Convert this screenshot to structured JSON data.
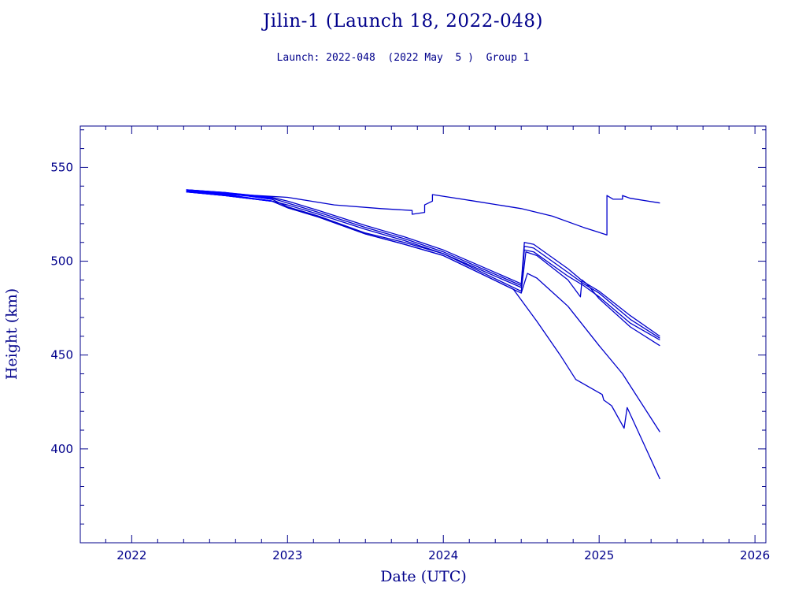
{
  "chart_data": {
    "type": "line",
    "title": "Jilin-1 (Launch 18, 2022-048)",
    "subtitle": "Launch: 2022-048  (2022 May  5 )  Group 1",
    "xlabel": "Date (UTC)",
    "ylabel": "Height (km)",
    "xlim": [
      2021.67,
      2026.07
    ],
    "ylim": [
      350,
      572
    ],
    "xticks": [
      2022,
      2023,
      2024,
      2025,
      2026
    ],
    "yticks": [
      400,
      450,
      500,
      550
    ],
    "grid": false,
    "colors": {
      "axis": "#00008b",
      "series": "#0000cc",
      "highlight": "#0000ff"
    },
    "series": [
      {
        "x": [
          2022.35,
          2022.5,
          2022.8,
          2023.0,
          2023.3,
          2023.6,
          2023.8,
          2023.8,
          2023.88,
          2023.88,
          2023.93,
          2023.93,
          2024.2,
          2024.5,
          2024.7,
          2024.9,
          2025.05,
          2025.05,
          2025.09,
          2025.15,
          2025.15,
          2025.2,
          2025.39
        ],
        "y": [
          537,
          536,
          535,
          534,
          530,
          528,
          527,
          525,
          526,
          530,
          532,
          535.5,
          532,
          528,
          524,
          518,
          514,
          535,
          533,
          533,
          535,
          533.5,
          531
        ]
      },
      {
        "x": [
          2022.35,
          2022.6,
          2022.9,
          2023.0,
          2023.2,
          2023.5,
          2023.75,
          2024.0,
          2024.25,
          2024.5,
          2024.52,
          2024.58,
          2024.8,
          2024.9,
          2025.0,
          2025.2,
          2025.39
        ],
        "y": [
          538,
          536.5,
          534,
          532,
          527,
          519,
          513,
          506,
          497,
          488,
          510,
          509,
          496,
          489,
          484,
          471,
          460
        ]
      },
      {
        "x": [
          2022.35,
          2022.6,
          2022.9,
          2023.0,
          2023.2,
          2023.5,
          2023.75,
          2024.0,
          2024.25,
          2024.5,
          2024.52,
          2024.58,
          2024.8,
          2024.9,
          2025.0,
          2025.2,
          2025.39
        ],
        "y": [
          537.5,
          536,
          533.5,
          531,
          526,
          518,
          512,
          505,
          496,
          487,
          508,
          507,
          494,
          488,
          483,
          469,
          459
        ]
      },
      {
        "x": [
          2022.35,
          2022.6,
          2022.9,
          2023.0,
          2023.2,
          2023.5,
          2023.75,
          2024.0,
          2024.25,
          2024.5,
          2024.52,
          2024.58,
          2024.8,
          2024.9,
          2025.0,
          2025.2,
          2025.39
        ],
        "y": [
          537,
          535.5,
          532,
          530,
          525,
          517,
          511,
          504,
          495,
          486,
          506,
          505,
          492,
          487,
          481,
          467,
          458
        ]
      },
      {
        "x": [
          2022.35,
          2022.6,
          2022.9,
          2023.0,
          2023.2,
          2023.5,
          2023.75,
          2024.0,
          2024.25,
          2024.5,
          2024.53,
          2024.6,
          2024.8,
          2024.88,
          2024.89,
          2024.92,
          2025.0,
          2025.2,
          2025.39
        ],
        "y": [
          538,
          536.5,
          533,
          529,
          524,
          515,
          510,
          504,
          494,
          484,
          505,
          503,
          490,
          481,
          490,
          488,
          480,
          465,
          455
        ]
      },
      {
        "x": [
          2022.35,
          2022.6,
          2022.9,
          2023.0,
          2023.2,
          2023.5,
          2023.75,
          2024.0,
          2024.25,
          2024.5,
          2024.54,
          2024.6,
          2024.8,
          2025.0,
          2025.15,
          2025.39
        ],
        "y": [
          537,
          535,
          532,
          528.5,
          523.5,
          514.5,
          509,
          503,
          493,
          483,
          493.5,
          491,
          476,
          455,
          440,
          409
        ]
      },
      {
        "x": [
          2022.35,
          2022.6,
          2022.9,
          2023.0,
          2023.2,
          2023.5,
          2023.75,
          2024.0,
          2024.25,
          2024.45,
          2024.6,
          2024.75,
          2024.85,
          2025.02,
          2025.03,
          2025.08,
          2025.16,
          2025.18,
          2025.39
        ],
        "y": [
          537,
          535,
          532,
          528.5,
          523.5,
          514.5,
          509,
          503,
          493,
          485,
          468,
          450,
          437,
          429,
          426,
          423,
          411,
          422,
          384
        ]
      }
    ]
  }
}
